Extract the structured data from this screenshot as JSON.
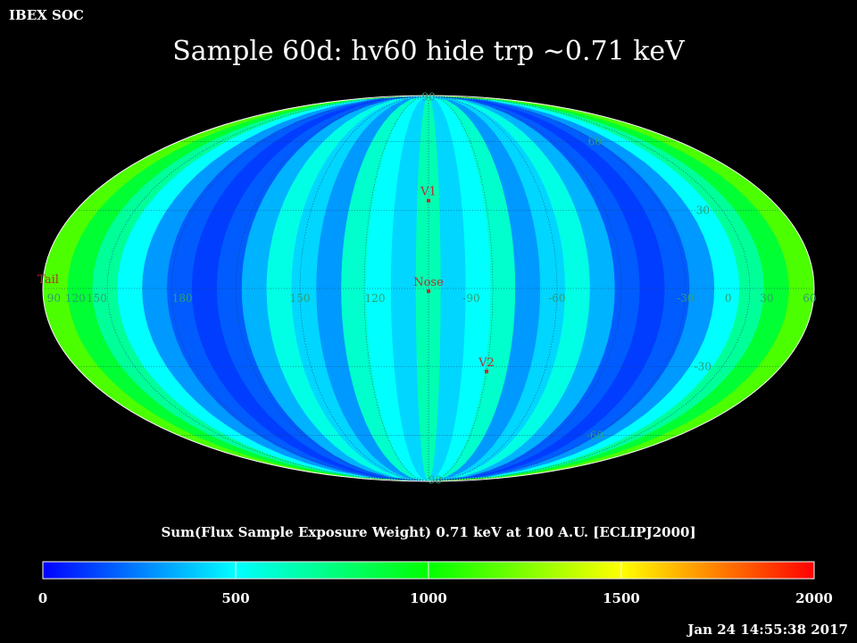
{
  "header": {
    "corner_label": "IBEX SOC",
    "title": "Sample 60d: hv60 hide trp ~0.71 keV"
  },
  "colorbar": {
    "title": "Sum(Flux Sample Exposure Weight)  0.71 keV at 100 A.U. [ECLIPJ2000]",
    "min": 0,
    "max": 2000,
    "ticks": [
      "0",
      "500",
      "1000",
      "1500",
      "2000"
    ],
    "stops": [
      "#0000ff",
      "#00ffff",
      "#00ff00",
      "#ffff00",
      "#ff0000"
    ]
  },
  "footer": {
    "timestamp": "Jan 24 14:55:38 2017"
  },
  "chart_data": {
    "type": "heatmap",
    "projection": "mollweide",
    "grid": true,
    "band_values": [
      1150,
      900,
      700,
      500,
      300,
      180,
      120,
      180,
      350,
      550,
      420,
      300,
      600,
      500,
      420,
      650,
      420,
      500,
      600,
      300,
      420,
      550,
      350,
      180,
      120,
      180,
      300,
      500,
      700,
      900,
      1150
    ],
    "lon_labels": [
      {
        "text": "60",
        "lon": 178
      },
      {
        "text": "30",
        "lon": 158
      },
      {
        "text": "0",
        "lon": 140
      },
      {
        "text": "-30",
        "lon": 120
      },
      {
        "text": "-60",
        "lon": 60
      },
      {
        "text": "-90",
        "lon": 20
      },
      {
        "text": "120",
        "lon": -25
      },
      {
        "text": "150",
        "lon": -60
      },
      {
        "text": "180",
        "lon": -115
      },
      {
        "text": "150",
        "lon": -155
      },
      {
        "text": "120",
        "lon": -165
      },
      {
        "text": "90",
        "lon": -175
      }
    ],
    "lat_labels": [
      {
        "text": "90",
        "lat": 88,
        "lon": 0
      },
      {
        "text": "60",
        "lat": 60,
        "lon": 120
      },
      {
        "text": "30",
        "lat": 30,
        "lon": 140
      },
      {
        "text": "-30",
        "lat": -30,
        "lon": 140
      },
      {
        "text": "-60",
        "lat": -60,
        "lon": 120
      },
      {
        "text": "-90",
        "lat": -88,
        "lon": 20
      }
    ],
    "markers": [
      {
        "label": "V1",
        "lat": 34,
        "lon": 0
      },
      {
        "label": "Nose",
        "lat": -1,
        "lon": 0
      },
      {
        "label": "V2",
        "lat": -32,
        "lon": 30
      },
      {
        "label": "Tail",
        "lat": 2,
        "lon": -180
      }
    ]
  }
}
